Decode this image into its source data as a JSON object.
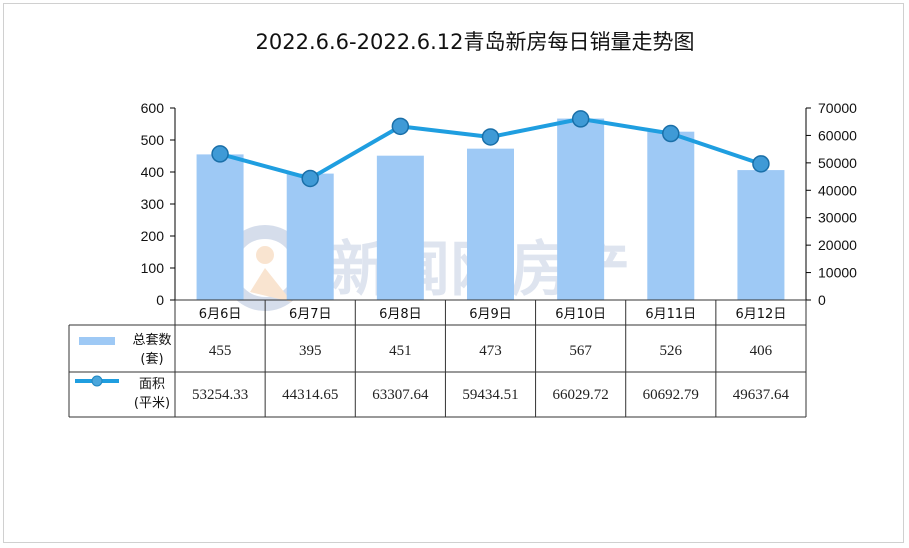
{
  "chart_data": {
    "type": "bar",
    "title": "2022.6.6-2022.6.12青岛新房每日销量走势图",
    "categories": [
      "6月6日",
      "6月7日",
      "6月8日",
      "6月9日",
      "6月10日",
      "6月11日",
      "6月12日"
    ],
    "series": [
      {
        "name": "总套数(套)",
        "type": "bar",
        "axis": "left",
        "color": "#9ec9f5",
        "values": [
          455,
          395,
          451,
          473,
          567,
          526,
          406
        ]
      },
      {
        "name": "面积(平米)",
        "type": "line",
        "axis": "right",
        "color": "#1f9ee0",
        "values": [
          53254.33,
          44314.65,
          63307.64,
          59434.51,
          66029.72,
          60692.79,
          49637.64
        ]
      }
    ],
    "legend_lines": {
      "bars": [
        "总套数",
        "(套)"
      ],
      "line": [
        "面积",
        "(平米)"
      ]
    },
    "table_bars": [
      "455",
      "395",
      "451",
      "473",
      "567",
      "526",
      "406"
    ],
    "table_line": [
      "53254.33",
      "44314.65",
      "63307.64",
      "59434.51",
      "66029.72",
      "60692.79",
      "49637.64"
    ],
    "ylim_left": [
      0,
      600
    ],
    "yticks_left": [
      "0",
      "100",
      "200",
      "300",
      "400",
      "500",
      "600"
    ],
    "ylim_right": [
      0,
      70000
    ],
    "yticks_right": [
      "0",
      "10000",
      "20000",
      "30000",
      "40000",
      "50000",
      "60000",
      "70000"
    ],
    "grid": false,
    "legend": "data-table"
  },
  "watermark": {
    "text": "新闻网房产",
    "icon": "location-pin-logo"
  }
}
